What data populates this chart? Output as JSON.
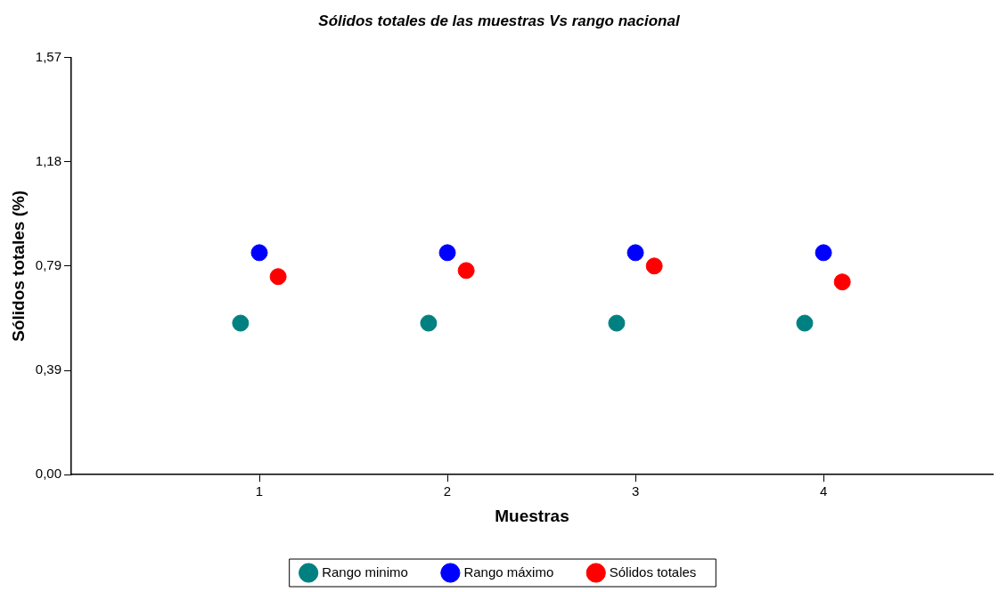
{
  "chart_data": {
    "type": "scatter",
    "title": "Sólidos totales de las muestras Vs rango nacional",
    "xlabel": "Muestras",
    "ylabel": "Sólidos totales (%)",
    "xlim": [
      0,
      4.9
    ],
    "xticks": [
      1,
      2,
      3,
      4
    ],
    "ylim": [
      0,
      1.57
    ],
    "yticks": [
      {
        "value": 0,
        "label": "0,00"
      },
      {
        "value": 0.3925,
        "label": "0,39"
      },
      {
        "value": 0.785,
        "label": "0,79"
      },
      {
        "value": 1.1775,
        "label": "1,18"
      },
      {
        "value": 1.57,
        "label": "1,57"
      }
    ],
    "series": [
      {
        "name": "Rango minimo",
        "color": "#008080",
        "x": [
          0.9,
          1.9,
          2.9,
          3.9
        ],
        "values": [
          0.57,
          0.57,
          0.57,
          0.57
        ]
      },
      {
        "name": "Rango máximo",
        "color": "#0000ff",
        "x": [
          1,
          2,
          3,
          4
        ],
        "values": [
          0.835,
          0.835,
          0.835,
          0.835
        ]
      },
      {
        "name": "Sólidos totales",
        "color": "#ff0000",
        "x": [
          1.1,
          2.1,
          3.1,
          4.1
        ],
        "values": [
          0.745,
          0.768,
          0.785,
          0.725
        ]
      }
    ],
    "grid": false,
    "legend": "bottom",
    "marker": "circle"
  }
}
